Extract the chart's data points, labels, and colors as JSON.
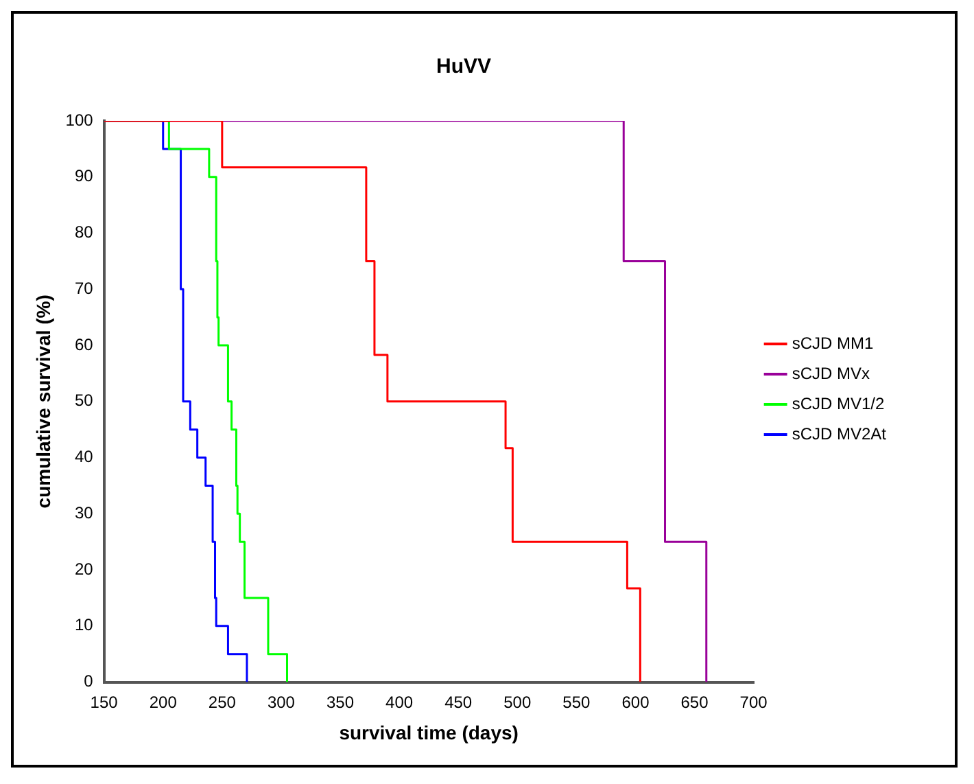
{
  "chart_data": {
    "type": "step",
    "title": "HuVV",
    "xlabel": "survival time (days)",
    "ylabel": "cumulative survival (%)",
    "xlim": [
      150,
      700
    ],
    "xticks": [
      150,
      200,
      250,
      300,
      350,
      400,
      450,
      500,
      550,
      600,
      650,
      700
    ],
    "ylim": [
      0,
      100
    ],
    "yticks": [
      0,
      10,
      20,
      30,
      40,
      50,
      60,
      70,
      80,
      90,
      100
    ],
    "grid": false,
    "legend": "right",
    "marker": "none",
    "line_style": "solid",
    "series": [
      {
        "name": "sCJD MM1",
        "color": "#ff0000",
        "x": [
          150,
          250,
          372,
          379,
          390,
          490,
          496,
          593,
          604
        ],
        "values": [
          100,
          91.7,
          75,
          58.3,
          50,
          41.7,
          25,
          16.7,
          0
        ]
      },
      {
        "name": "sCJD MVx",
        "color": "#990099",
        "x": [
          150,
          590,
          625,
          660
        ],
        "values": [
          100,
          75,
          25,
          0
        ]
      },
      {
        "name": "sCJD MV1/2",
        "color": "#00ff00",
        "x": [
          150,
          205,
          239,
          245,
          246,
          247,
          255,
          258,
          262,
          263,
          265,
          269,
          289,
          305
        ],
        "values": [
          100,
          95,
          90,
          75,
          65,
          60,
          50,
          45,
          35,
          30,
          25,
          15,
          5,
          0
        ]
      },
      {
        "name": "sCJD MV2At",
        "color": "#0000ff",
        "x": [
          150,
          200,
          215,
          217,
          223,
          229,
          236,
          242,
          244,
          245,
          255,
          271
        ],
        "values": [
          100,
          95,
          70,
          50,
          45,
          40,
          35,
          25,
          15,
          10,
          5,
          0
        ]
      }
    ]
  }
}
